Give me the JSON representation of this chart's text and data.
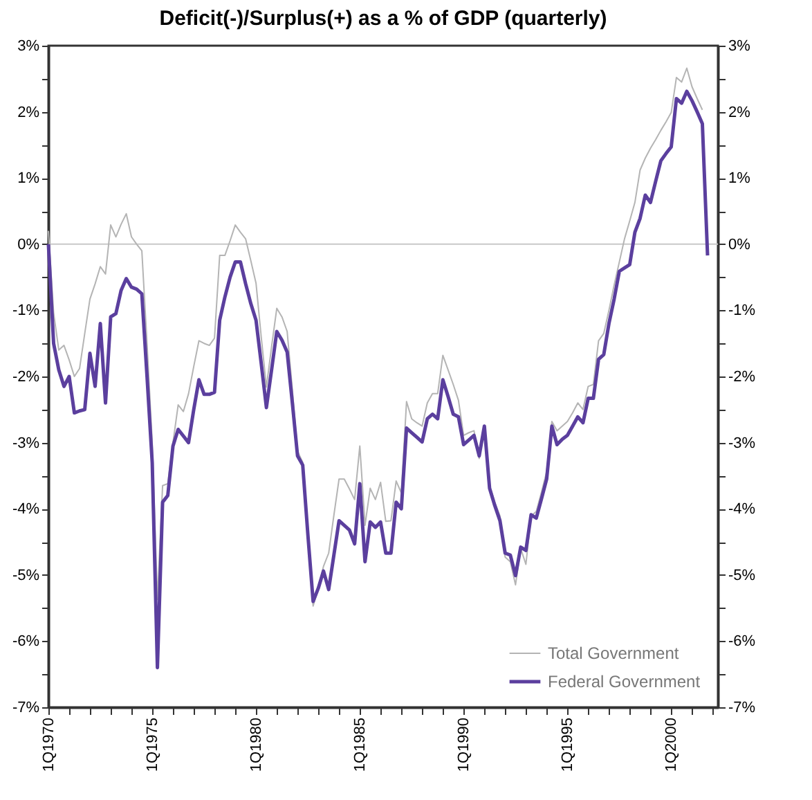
{
  "chart_data": {
    "type": "line",
    "title": "Deficit(-)/Surplus(+) as a % of GDP (quarterly)",
    "categories": [
      "1Q1970",
      null,
      null,
      null,
      null,
      null,
      null,
      null,
      null,
      null,
      null,
      null,
      null,
      null,
      null,
      null,
      null,
      null,
      null,
      null,
      "1Q1975",
      null,
      null,
      null,
      null,
      null,
      null,
      null,
      null,
      null,
      null,
      null,
      null,
      null,
      null,
      null,
      null,
      null,
      null,
      null,
      "1Q1980",
      null,
      null,
      null,
      null,
      null,
      null,
      null,
      null,
      null,
      null,
      null,
      null,
      null,
      null,
      null,
      null,
      null,
      null,
      null,
      "1Q1985",
      null,
      null,
      null,
      null,
      null,
      null,
      null,
      null,
      null,
      null,
      null,
      null,
      null,
      null,
      null,
      null,
      null,
      null,
      null,
      "1Q1990",
      null,
      null,
      null,
      null,
      null,
      null,
      null,
      null,
      null,
      null,
      null,
      null,
      null,
      null,
      null,
      null,
      null,
      null,
      null,
      "1Q1995",
      null,
      null,
      null,
      null,
      null,
      null,
      null,
      null,
      null,
      null,
      null,
      null,
      null,
      null,
      null,
      null,
      null,
      null,
      null,
      "1Q2000",
      null,
      null,
      null,
      null,
      null,
      null,
      null,
      null,
      null
    ],
    "ylim": [
      -7,
      3
    ],
    "yticks": [
      {
        "value": -7,
        "label": "-7%"
      },
      {
        "value": -6.5,
        "label": null
      },
      {
        "value": -6,
        "label": "-6%"
      },
      {
        "value": -5.5,
        "label": null
      },
      {
        "value": -5,
        "label": "-5%"
      },
      {
        "value": -4.5,
        "label": null
      },
      {
        "value": -4,
        "label": "-4%"
      },
      {
        "value": -3.5,
        "label": null
      },
      {
        "value": -3,
        "label": "-3%"
      },
      {
        "value": -2.5,
        "label": null
      },
      {
        "value": -2,
        "label": "-2%"
      },
      {
        "value": -1.5,
        "label": null
      },
      {
        "value": -1,
        "label": "-1%"
      },
      {
        "value": -0.5,
        "label": null
      },
      {
        "value": 0,
        "label": "0%"
      },
      {
        "value": 0.5,
        "label": null
      },
      {
        "value": 1,
        "label": "1%"
      },
      {
        "value": 1.5,
        "label": null
      },
      {
        "value": 2,
        "label": "2%"
      },
      {
        "value": 2.5,
        "label": null
      },
      {
        "value": 3,
        "label": "3%"
      }
    ],
    "y2lim": [
      -7,
      3
    ],
    "y2ticks": [
      {
        "value": -7,
        "label": "-7%"
      },
      {
        "value": -6.5,
        "label": null
      },
      {
        "value": -6,
        "label": "-6%"
      },
      {
        "value": -5.5,
        "label": null
      },
      {
        "value": -5,
        "label": "-5%"
      },
      {
        "value": -4.5,
        "label": null
      },
      {
        "value": -4,
        "label": "-4%"
      },
      {
        "value": -3.5,
        "label": null
      },
      {
        "value": -3,
        "label": "-3%"
      },
      {
        "value": -2.5,
        "label": null
      },
      {
        "value": -2,
        "label": "-2%"
      },
      {
        "value": -1.5,
        "label": null
      },
      {
        "value": -1,
        "label": "-1%"
      },
      {
        "value": -0.5,
        "label": null
      },
      {
        "value": 0,
        "label": "0%"
      },
      {
        "value": 0.5,
        "label": null
      },
      {
        "value": 1,
        "label": "1%"
      },
      {
        "value": 1.5,
        "label": null
      },
      {
        "value": 2,
        "label": "2%"
      },
      {
        "value": 2.5,
        "label": null
      },
      {
        "value": 3,
        "label": "3%"
      }
    ],
    "ref_lines": [
      {
        "axis": "y",
        "value": 0,
        "color": "#c8c8c8"
      }
    ],
    "legend": "bottom right",
    "series": [
      {
        "name": "Total Government",
        "color": "#b4b4b4",
        "values": [
          0.2,
          -1.04,
          -1.6,
          -1.53,
          -1.75,
          -2.0,
          -1.88,
          -1.35,
          -0.83,
          -0.6,
          -0.34,
          -0.45,
          0.29,
          0.11,
          0.3,
          0.46,
          0.11,
          0.0,
          -0.1,
          -1.5,
          -3.0,
          -5.37,
          -3.65,
          -3.62,
          -3.0,
          -2.43,
          -2.53,
          -2.26,
          -1.85,
          -1.46,
          -1.5,
          -1.53,
          -1.42,
          -0.17,
          -0.17,
          0.05,
          0.29,
          0.18,
          0.08,
          -0.25,
          -0.59,
          -1.4,
          -2.16,
          -1.55,
          -0.97,
          -1.1,
          -1.32,
          -2.2,
          -3.13,
          -3.3,
          -4.4,
          -5.47,
          -5.2,
          -4.87,
          -4.67,
          -4.1,
          -3.55,
          -3.55,
          -3.7,
          -3.86,
          -3.05,
          -4.25,
          -3.69,
          -3.86,
          -3.6,
          -4.19,
          -4.18,
          -3.58,
          -3.76,
          -2.38,
          -2.64,
          -2.7,
          -2.75,
          -2.4,
          -2.26,
          -2.26,
          -1.68,
          -1.9,
          -2.12,
          -2.36,
          -2.89,
          -2.85,
          -2.82,
          -3.24,
          -2.75,
          -3.65,
          -3.9,
          -4.11,
          -4.73,
          -4.8,
          -5.15,
          -4.6,
          -4.84,
          -4.11,
          -4.04,
          -3.75,
          -3.44,
          -2.68,
          -2.82,
          -2.75,
          -2.68,
          -2.55,
          -2.4,
          -2.5,
          -2.15,
          -2.12,
          -1.46,
          -1.35,
          -1.0,
          -0.62,
          -0.27,
          0.08,
          0.35,
          0.63,
          1.12,
          1.3,
          1.45,
          1.58,
          1.72,
          1.85,
          1.99,
          2.52,
          2.45,
          2.66,
          2.38,
          2.2,
          2.03,
          null,
          null,
          null
        ]
      },
      {
        "name": "Federal Government",
        "color": "#5b3f9e",
        "values": [
          0.0,
          -1.5,
          -1.9,
          -2.15,
          -2.0,
          -2.55,
          -2.52,
          -2.5,
          -1.65,
          -2.15,
          -1.2,
          -2.4,
          -1.1,
          -1.05,
          -0.7,
          -0.52,
          -0.65,
          -0.68,
          -0.75,
          -2.0,
          -3.3,
          -6.4,
          -3.9,
          -3.8,
          -3.05,
          -2.8,
          -2.9,
          -3.0,
          -2.5,
          -2.05,
          -2.27,
          -2.27,
          -2.24,
          -1.15,
          -0.8,
          -0.5,
          -0.27,
          -0.27,
          -0.6,
          -0.9,
          -1.15,
          -1.8,
          -2.47,
          -1.9,
          -1.32,
          -1.45,
          -1.63,
          -2.4,
          -3.2,
          -3.34,
          -4.4,
          -5.4,
          -5.2,
          -4.94,
          -5.22,
          -4.7,
          -4.18,
          -4.25,
          -4.32,
          -4.53,
          -3.62,
          -4.8,
          -4.2,
          -4.28,
          -4.2,
          -4.67,
          -4.67,
          -3.9,
          -4.0,
          -2.78,
          -2.85,
          -2.92,
          -2.99,
          -2.64,
          -2.57,
          -2.64,
          -2.05,
          -2.3,
          -2.57,
          -2.61,
          -3.03,
          -2.96,
          -2.89,
          -3.2,
          -2.75,
          -3.69,
          -3.95,
          -4.18,
          -4.67,
          -4.7,
          -5.01,
          -4.58,
          -4.63,
          -4.09,
          -4.14,
          -3.85,
          -3.55,
          -2.75,
          -3.03,
          -2.95,
          -2.89,
          -2.75,
          -2.61,
          -2.7,
          -2.33,
          -2.33,
          -1.74,
          -1.67,
          -1.2,
          -0.83,
          -0.41,
          -0.36,
          -0.31,
          0.18,
          0.39,
          0.74,
          0.63,
          0.95,
          1.26,
          1.37,
          1.47,
          2.2,
          2.13,
          2.31,
          2.17,
          2.0,
          1.82,
          -0.17,
          null,
          null
        ]
      }
    ]
  }
}
